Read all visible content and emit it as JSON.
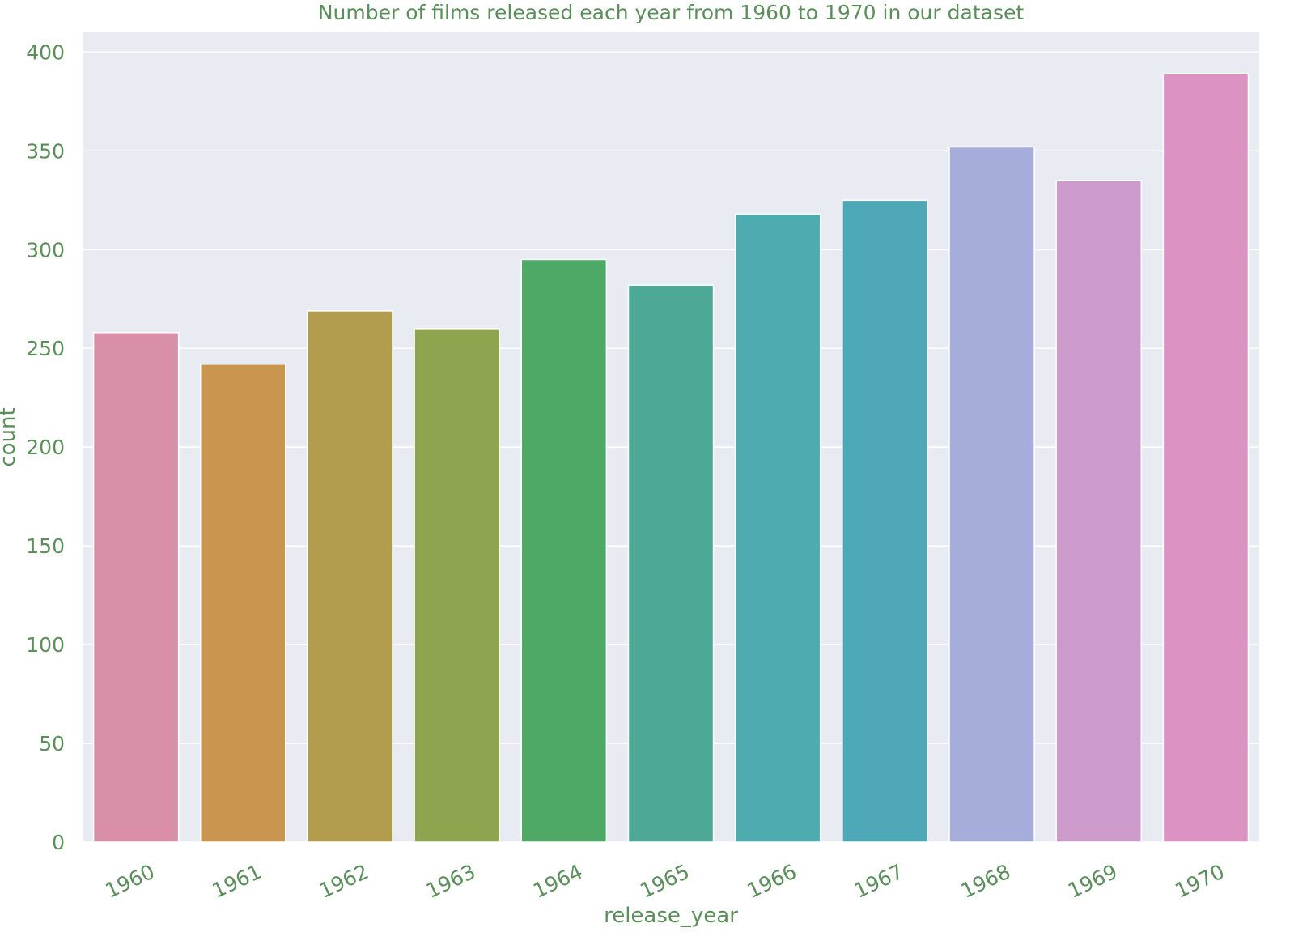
{
  "chart_data": {
    "type": "bar",
    "title": "Number of films released each year from 1960 to 1970 in our dataset",
    "xlabel": "release_year",
    "ylabel": "count",
    "ylim": [
      0,
      410
    ],
    "yticks": [
      "0",
      "50",
      "100",
      "150",
      "200",
      "250",
      "300",
      "350",
      "400"
    ],
    "categories": [
      "1960",
      "1961",
      "1962",
      "1963",
      "1964",
      "1965",
      "1966",
      "1967",
      "1968",
      "1969",
      "1970"
    ],
    "values": [
      258,
      242,
      269,
      260,
      295,
      282,
      318,
      325,
      352,
      335,
      389
    ],
    "bar_colors": [
      "#d98fa8",
      "#c8964f",
      "#b29c4e",
      "#8fa44f",
      "#4ea866",
      "#4da895",
      "#4eacb0",
      "#4ea8b8",
      "#a6addb",
      "#cc9bcb",
      "#dc92c3"
    ],
    "grid": true,
    "legend": "none",
    "colors": {
      "text": "#5a8f5a",
      "plot_background": "#e9ebf2",
      "grid": "#ffffff"
    }
  }
}
